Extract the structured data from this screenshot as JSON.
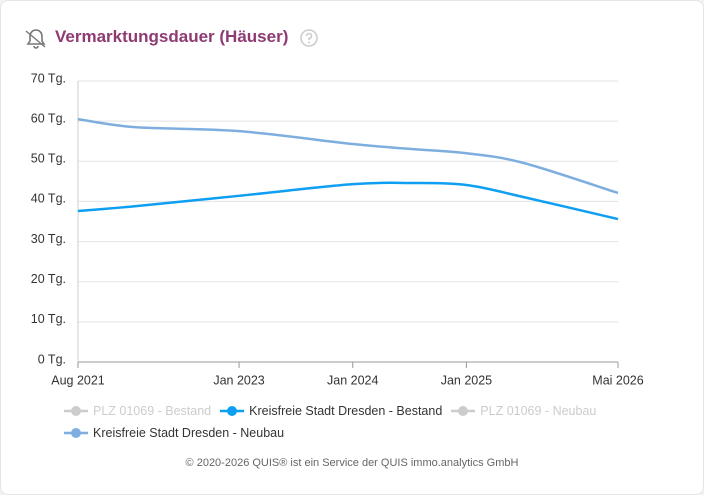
{
  "chart_data": {
    "type": "line",
    "title": "Vermarktungsdauer (Häuser)",
    "footer": "© 2020-2026 QUIS® ist ein Service der QUIS immo.analytics GmbH",
    "x": [
      "2021-08",
      "2022-02",
      "2023-01",
      "2024-01",
      "2024-07",
      "2025-01",
      "2025-07",
      "2026-05"
    ],
    "xlim": [
      "2021-08",
      "2026-05"
    ],
    "xticks": [
      {
        "value": "2021-08",
        "label": "Aug 2021"
      },
      {
        "value": "2023-01",
        "label": "Jan 2023"
      },
      {
        "value": "2024-01",
        "label": "Jan 2024"
      },
      {
        "value": "2025-01",
        "label": "Jan 2025"
      },
      {
        "value": "2026-05",
        "label": "Mai 2026"
      }
    ],
    "ylim": [
      0,
      70
    ],
    "yticks": [
      {
        "value": 0,
        "label": "0 Tg."
      },
      {
        "value": 10,
        "label": "10 Tg."
      },
      {
        "value": 20,
        "label": "20 Tg."
      },
      {
        "value": 30,
        "label": "30 Tg."
      },
      {
        "value": 40,
        "label": "40 Tg."
      },
      {
        "value": 50,
        "label": "50 Tg."
      },
      {
        "value": 60,
        "label": "60 Tg."
      },
      {
        "value": 70,
        "label": "70 Tg."
      }
    ],
    "grid": true,
    "series": [
      {
        "name": "PLZ 01069 - Bestand",
        "color": "#cccccc",
        "visible": false,
        "values": [
          null,
          null,
          null,
          null,
          null,
          null,
          null,
          null
        ]
      },
      {
        "name": "Kreisfreie Stadt Dresden - Bestand",
        "color": "#0f9ff2",
        "visible": true,
        "values": [
          37.6,
          38.8,
          41.4,
          44.3,
          44.6,
          44.1,
          41.1,
          35.6
        ]
      },
      {
        "name": "PLZ 01069 - Neubau",
        "color": "#cccccc",
        "visible": false,
        "values": [
          null,
          null,
          null,
          null,
          null,
          null,
          null,
          null
        ]
      },
      {
        "name": "Kreisfreie Stadt Dresden - Neubau",
        "color": "#7eaedf",
        "visible": true,
        "values": [
          60.5,
          58.5,
          57.5,
          54.3,
          53.1,
          52.0,
          49.6,
          42.1
        ]
      }
    ]
  }
}
